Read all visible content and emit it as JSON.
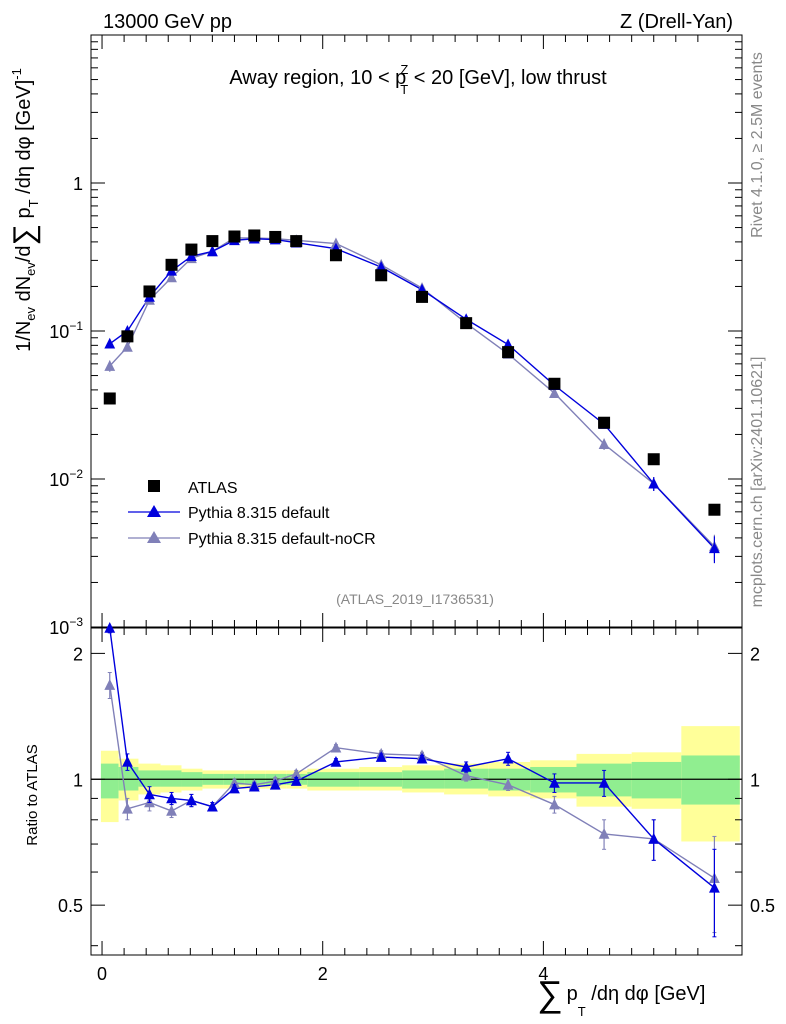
{
  "header": {
    "left": "13000 GeV pp",
    "right": "Z (Drell-Yan)",
    "side_rivet": "Rivet 4.1.0, ≥ 2.5M events",
    "side_mcplots": "mcplots.cern.ch [arXiv:2401.10621]"
  },
  "colors": {
    "data": "#000000",
    "pythia_default": "#0000dd",
    "pythia_nocr": "#8080b8",
    "band_inner": "#90ee90",
    "band_outer": "#ffff99"
  },
  "chart_data": [
    {
      "type": "scatter",
      "panel": "main",
      "title_parts": {
        "prefix": "Away region, 10 < p",
        "sup": "Z",
        "sub": "T",
        "suffix": " < 20 [GeV], low thrust"
      },
      "ylabel_parts": {
        "a": "1/N",
        "b": "ev",
        "c": " dN",
        "d": "ev",
        "e": "/d",
        "f": "∑",
        "g": " p",
        "h": "T",
        "i": " /dη dφ  [GeV]",
        "j": "-1"
      },
      "yscale": "log",
      "ylim": [
        0.001,
        10
      ],
      "xlim": [
        -0.1,
        5.8
      ],
      "y_ticks": [
        {
          "value": 0.001,
          "label_base": "10",
          "label_exp": "−3"
        },
        {
          "value": 0.01,
          "label_base": "10",
          "label_exp": "−2"
        },
        {
          "value": 0.1,
          "label_base": "10",
          "label_exp": "−1"
        },
        {
          "value": 1,
          "label_base": "1",
          "label_exp": ""
        }
      ],
      "watermark": "(ATLAS_2019_I1736531)",
      "legend_position": "bottom-left",
      "legend": [
        "ATLAS",
        "Pythia 8.315 default",
        "Pythia 8.315 default-noCR"
      ],
      "x": [
        0.07,
        0.23,
        0.43,
        0.63,
        0.81,
        1.0,
        1.2,
        1.38,
        1.57,
        1.76,
        2.12,
        2.53,
        2.9,
        3.3,
        3.68,
        4.1,
        4.55,
        5.0,
        5.55
      ],
      "series": [
        {
          "name": "ATLAS",
          "marker": "square",
          "values": [
            0.035,
            0.092,
            0.185,
            0.28,
            0.355,
            0.405,
            0.435,
            0.442,
            0.432,
            0.405,
            0.325,
            0.238,
            0.17,
            0.113,
            0.072,
            0.044,
            0.024,
            0.0136,
            0.0062
          ]
        },
        {
          "name": "Pythia 8.315 default",
          "marker": "triangle",
          "values": [
            0.082,
            0.1,
            0.17,
            0.255,
            0.32,
            0.345,
            0.41,
            0.42,
            0.415,
            0.395,
            0.36,
            0.27,
            0.19,
            0.12,
            0.081,
            0.043,
            0.0235,
            0.0093,
            0.0034
          ],
          "errors": [
            0.004,
            0.004,
            0.006,
            0.006,
            0.006,
            0.006,
            0.006,
            0.006,
            0.006,
            0.006,
            0.006,
            0.005,
            0.004,
            0.003,
            0.003,
            0.002,
            0.0015,
            0.001,
            0.0007
          ]
        },
        {
          "name": "Pythia 8.315 default-noCR",
          "marker": "triangle",
          "values": [
            0.058,
            0.078,
            0.162,
            0.23,
            0.31,
            0.345,
            0.425,
            0.425,
            0.42,
            0.41,
            0.39,
            0.28,
            0.195,
            0.113,
            0.07,
            0.038,
            0.0172,
            0.0093,
            0.0035
          ],
          "errors": [
            0.005,
            0.004,
            0.005,
            0.006,
            0.006,
            0.006,
            0.006,
            0.006,
            0.006,
            0.006,
            0.006,
            0.005,
            0.004,
            0.003,
            0.003,
            0.002,
            0.0015,
            0.001,
            0.0007
          ]
        }
      ]
    },
    {
      "type": "line",
      "panel": "ratio",
      "ylabel": "Ratio to ATLAS",
      "xlabel_parts": {
        "sigma": "∑",
        "p": "p",
        "sub": "T",
        "rest": " /dη dφ [GeV]"
      },
      "ylim": [
        0.38,
        2.3
      ],
      "xlim": [
        -0.1,
        5.8
      ],
      "y_ticks": [
        0.5,
        1,
        2
      ],
      "y_tick_labels": [
        "0.5",
        "1",
        "2"
      ],
      "x_ticks": [
        0,
        2,
        4
      ],
      "x_tick_labels": [
        "0",
        "2",
        "4"
      ],
      "reference": 1,
      "bands": [
        {
          "x0": -0.01,
          "x1": 0.15,
          "inner": [
            0.9,
            1.09
          ],
          "outer": [
            0.79,
            1.17
          ]
        },
        {
          "x0": 0.15,
          "x1": 0.33,
          "inner": [
            0.94,
            1.07
          ],
          "outer": [
            0.89,
            1.12
          ]
        },
        {
          "x0": 0.33,
          "x1": 0.53,
          "inner": [
            0.96,
            1.05
          ],
          "outer": [
            0.92,
            1.09
          ]
        },
        {
          "x0": 0.53,
          "x1": 0.72,
          "inner": [
            0.96,
            1.05
          ],
          "outer": [
            0.93,
            1.08
          ]
        },
        {
          "x0": 0.72,
          "x1": 0.91,
          "inner": [
            0.96,
            1.04
          ],
          "outer": [
            0.94,
            1.06
          ]
        },
        {
          "x0": 0.91,
          "x1": 1.1,
          "inner": [
            0.97,
            1.03
          ],
          "outer": [
            0.95,
            1.05
          ]
        },
        {
          "x0": 1.1,
          "x1": 1.29,
          "inner": [
            0.97,
            1.03
          ],
          "outer": [
            0.95,
            1.05
          ]
        },
        {
          "x0": 1.29,
          "x1": 1.48,
          "inner": [
            0.97,
            1.03
          ],
          "outer": [
            0.95,
            1.05
          ]
        },
        {
          "x0": 1.48,
          "x1": 1.67,
          "inner": [
            0.97,
            1.03
          ],
          "outer": [
            0.95,
            1.05
          ]
        },
        {
          "x0": 1.67,
          "x1": 1.86,
          "inner": [
            0.97,
            1.03
          ],
          "outer": [
            0.95,
            1.05
          ]
        },
        {
          "x0": 1.86,
          "x1": 2.33,
          "inner": [
            0.96,
            1.04
          ],
          "outer": [
            0.94,
            1.06
          ]
        },
        {
          "x0": 2.33,
          "x1": 2.72,
          "inner": [
            0.96,
            1.04
          ],
          "outer": [
            0.94,
            1.07
          ]
        },
        {
          "x0": 2.72,
          "x1": 3.1,
          "inner": [
            0.95,
            1.05
          ],
          "outer": [
            0.93,
            1.08
          ]
        },
        {
          "x0": 3.1,
          "x1": 3.5,
          "inner": [
            0.95,
            1.06
          ],
          "outer": [
            0.92,
            1.09
          ]
        },
        {
          "x0": 3.5,
          "x1": 3.88,
          "inner": [
            0.94,
            1.06
          ],
          "outer": [
            0.91,
            1.1
          ]
        },
        {
          "x0": 3.88,
          "x1": 4.3,
          "inner": [
            0.93,
            1.07
          ],
          "outer": [
            0.9,
            1.11
          ]
        },
        {
          "x0": 4.3,
          "x1": 4.8,
          "inner": [
            0.91,
            1.09
          ],
          "outer": [
            0.86,
            1.15
          ]
        },
        {
          "x0": 4.8,
          "x1": 5.25,
          "inner": [
            0.9,
            1.1
          ],
          "outer": [
            0.85,
            1.16
          ]
        },
        {
          "x0": 5.25,
          "x1": 5.78,
          "inner": [
            0.87,
            1.14
          ],
          "outer": [
            0.71,
            1.34
          ]
        }
      ],
      "x": [
        0.07,
        0.23,
        0.43,
        0.63,
        0.81,
        1.0,
        1.2,
        1.38,
        1.57,
        1.76,
        2.12,
        2.53,
        2.9,
        3.3,
        3.68,
        4.1,
        4.55,
        5.0,
        5.55
      ],
      "series": [
        {
          "name": "Pythia 8.315 default",
          "values": [
            2.3,
            1.1,
            0.92,
            0.9,
            0.89,
            0.86,
            0.95,
            0.96,
            0.97,
            0.99,
            1.1,
            1.13,
            1.12,
            1.07,
            1.12,
            0.98,
            0.98,
            0.72,
            0.55
          ],
          "errors": [
            0.06,
            0.05,
            0.04,
            0.03,
            0.03,
            0.02,
            0.02,
            0.02,
            0.02,
            0.02,
            0.02,
            0.02,
            0.02,
            0.03,
            0.04,
            0.05,
            0.07,
            0.08,
            0.13
          ]
        },
        {
          "name": "Pythia 8.315 default-noCR",
          "values": [
            1.68,
            0.85,
            0.88,
            0.84,
            0.89,
            0.86,
            0.98,
            0.97,
            0.99,
            1.03,
            1.19,
            1.15,
            1.14,
            1.02,
            0.97,
            0.87,
            0.74,
            0.72,
            0.58
          ],
          "errors": [
            0.12,
            0.05,
            0.04,
            0.03,
            0.03,
            0.02,
            0.02,
            0.02,
            0.02,
            0.02,
            0.02,
            0.02,
            0.02,
            0.03,
            0.03,
            0.04,
            0.06,
            0.08,
            0.15
          ]
        }
      ]
    }
  ]
}
